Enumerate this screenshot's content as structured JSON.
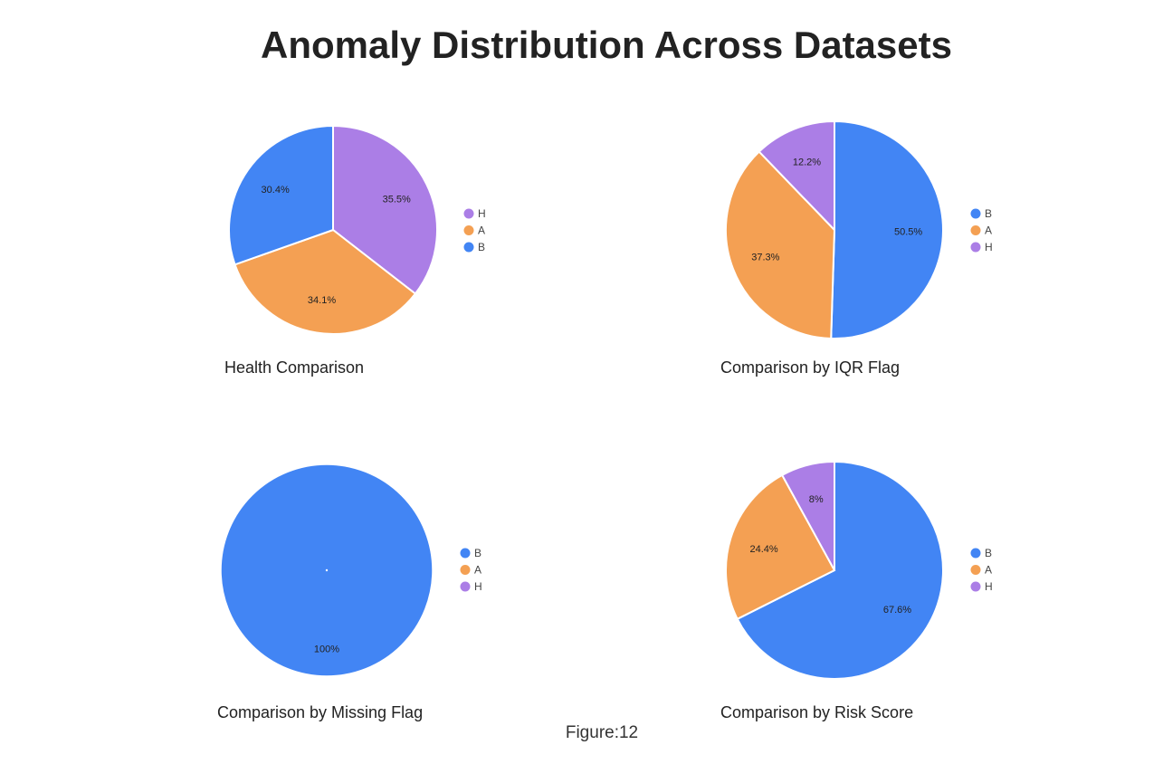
{
  "title": "Anomaly Distribution Across Datasets",
  "figure_label": "Figure:12",
  "colors": {
    "B": "#4285f4",
    "A": "#f4a053",
    "H": "#ab7ee6"
  },
  "chart_data": [
    {
      "type": "pie",
      "title": "Health Comparison",
      "slices": [
        {
          "label": "H",
          "value": 35.5,
          "text": "35.5%"
        },
        {
          "label": "A",
          "value": 34.1,
          "text": "34.1%"
        },
        {
          "label": "B",
          "value": 30.4,
          "text": "30.4%"
        }
      ],
      "legend": [
        "H",
        "A",
        "B"
      ],
      "legend_position": "right"
    },
    {
      "type": "pie",
      "title": "Comparison by IQR Flag",
      "slices": [
        {
          "label": "B",
          "value": 50.5,
          "text": "50.5%"
        },
        {
          "label": "A",
          "value": 37.3,
          "text": "37.3%"
        },
        {
          "label": "H",
          "value": 12.2,
          "text": "12.2%"
        }
      ],
      "legend": [
        "B",
        "A",
        "H"
      ],
      "legend_position": "right"
    },
    {
      "type": "pie",
      "title": "Comparison by Missing Flag",
      "slices": [
        {
          "label": "B",
          "value": 100,
          "text": "100%"
        }
      ],
      "legend": [
        "B",
        "A",
        "H"
      ],
      "legend_position": "right"
    },
    {
      "type": "pie",
      "title": "Comparison by Risk Score",
      "slices": [
        {
          "label": "B",
          "value": 67.6,
          "text": "67.6%"
        },
        {
          "label": "A",
          "value": 24.4,
          "text": "24.4%"
        },
        {
          "label": "H",
          "value": 8,
          "text": "8%"
        }
      ],
      "legend": [
        "B",
        "A",
        "H"
      ],
      "legend_position": "right"
    }
  ]
}
